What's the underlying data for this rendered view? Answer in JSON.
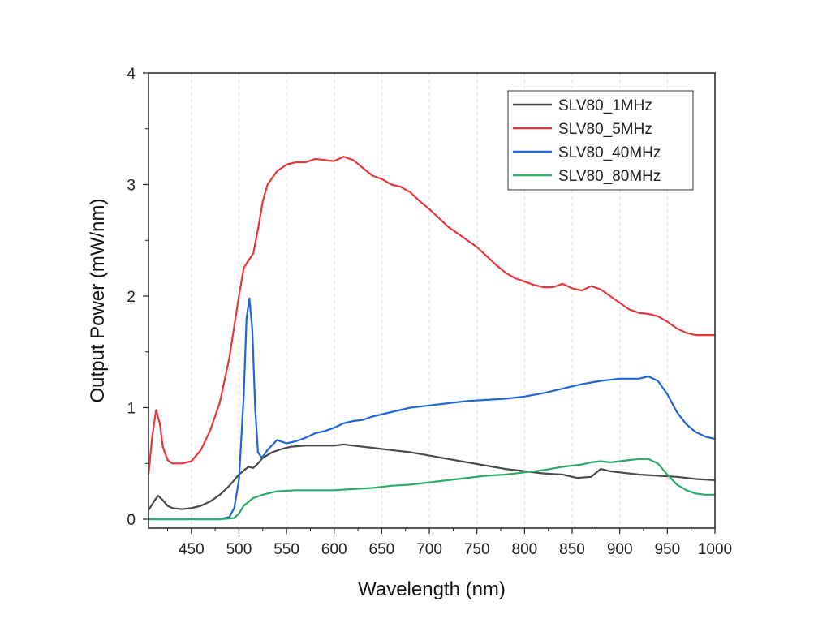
{
  "chart_data": {
    "type": "line",
    "title": "",
    "xlabel": "Wavelength (nm)",
    "ylabel": "Output Power (mW/nm)",
    "xlim": [
      405,
      1000
    ],
    "ylim": [
      -0.08,
      4
    ],
    "x_ticks": [
      450,
      500,
      550,
      600,
      650,
      700,
      750,
      800,
      850,
      900,
      950,
      1000
    ],
    "y_ticks": [
      0,
      1,
      2,
      3,
      4
    ],
    "grid": "vertical dashed, light",
    "legend": "top-right",
    "series": [
      {
        "name": "SLV80_1MHz",
        "color": "#4a4a4a",
        "points": [
          [
            405,
            0.08
          ],
          [
            410,
            0.15
          ],
          [
            415,
            0.21
          ],
          [
            420,
            0.17
          ],
          [
            425,
            0.12
          ],
          [
            430,
            0.1
          ],
          [
            440,
            0.09
          ],
          [
            450,
            0.1
          ],
          [
            460,
            0.12
          ],
          [
            470,
            0.16
          ],
          [
            480,
            0.22
          ],
          [
            490,
            0.3
          ],
          [
            500,
            0.4
          ],
          [
            510,
            0.47
          ],
          [
            515,
            0.46
          ],
          [
            520,
            0.5
          ],
          [
            525,
            0.55
          ],
          [
            535,
            0.6
          ],
          [
            545,
            0.63
          ],
          [
            555,
            0.65
          ],
          [
            570,
            0.66
          ],
          [
            590,
            0.66
          ],
          [
            600,
            0.66
          ],
          [
            610,
            0.67
          ],
          [
            620,
            0.66
          ],
          [
            640,
            0.64
          ],
          [
            660,
            0.62
          ],
          [
            680,
            0.6
          ],
          [
            700,
            0.57
          ],
          [
            720,
            0.54
          ],
          [
            740,
            0.51
          ],
          [
            760,
            0.48
          ],
          [
            780,
            0.45
          ],
          [
            800,
            0.43
          ],
          [
            820,
            0.41
          ],
          [
            840,
            0.4
          ],
          [
            855,
            0.37
          ],
          [
            870,
            0.38
          ],
          [
            880,
            0.45
          ],
          [
            890,
            0.43
          ],
          [
            900,
            0.42
          ],
          [
            920,
            0.4
          ],
          [
            940,
            0.39
          ],
          [
            960,
            0.38
          ],
          [
            980,
            0.36
          ],
          [
            1000,
            0.35
          ]
        ]
      },
      {
        "name": "SLV80_5MHz",
        "color": "#e8363a",
        "points": [
          [
            405,
            0.4
          ],
          [
            409,
            0.75
          ],
          [
            413,
            0.98
          ],
          [
            417,
            0.85
          ],
          [
            420,
            0.65
          ],
          [
            425,
            0.53
          ],
          [
            430,
            0.5
          ],
          [
            440,
            0.5
          ],
          [
            450,
            0.52
          ],
          [
            460,
            0.62
          ],
          [
            470,
            0.8
          ],
          [
            480,
            1.05
          ],
          [
            490,
            1.45
          ],
          [
            500,
            2.0
          ],
          [
            505,
            2.25
          ],
          [
            510,
            2.32
          ],
          [
            515,
            2.38
          ],
          [
            520,
            2.6
          ],
          [
            525,
            2.85
          ],
          [
            530,
            3.0
          ],
          [
            540,
            3.12
          ],
          [
            550,
            3.18
          ],
          [
            560,
            3.2
          ],
          [
            570,
            3.2
          ],
          [
            580,
            3.23
          ],
          [
            590,
            3.22
          ],
          [
            600,
            3.21
          ],
          [
            610,
            3.25
          ],
          [
            620,
            3.22
          ],
          [
            630,
            3.15
          ],
          [
            640,
            3.08
          ],
          [
            650,
            3.05
          ],
          [
            660,
            3.0
          ],
          [
            670,
            2.98
          ],
          [
            680,
            2.93
          ],
          [
            690,
            2.85
          ],
          [
            700,
            2.78
          ],
          [
            710,
            2.7
          ],
          [
            720,
            2.62
          ],
          [
            730,
            2.56
          ],
          [
            740,
            2.5
          ],
          [
            750,
            2.44
          ],
          [
            760,
            2.36
          ],
          [
            770,
            2.28
          ],
          [
            780,
            2.21
          ],
          [
            790,
            2.16
          ],
          [
            800,
            2.13
          ],
          [
            810,
            2.1
          ],
          [
            820,
            2.08
          ],
          [
            830,
            2.08
          ],
          [
            840,
            2.11
          ],
          [
            850,
            2.07
          ],
          [
            860,
            2.05
          ],
          [
            870,
            2.09
          ],
          [
            880,
            2.06
          ],
          [
            890,
            2.0
          ],
          [
            900,
            1.94
          ],
          [
            910,
            1.88
          ],
          [
            920,
            1.85
          ],
          [
            930,
            1.84
          ],
          [
            940,
            1.82
          ],
          [
            950,
            1.77
          ],
          [
            960,
            1.71
          ],
          [
            970,
            1.67
          ],
          [
            980,
            1.65
          ],
          [
            990,
            1.65
          ],
          [
            1000,
            1.65
          ]
        ]
      },
      {
        "name": "SLV80_40MHz",
        "color": "#1f66d6",
        "points": [
          [
            405,
            0.0
          ],
          [
            420,
            0.0
          ],
          [
            440,
            0.0
          ],
          [
            460,
            0.0
          ],
          [
            480,
            0.0
          ],
          [
            490,
            0.02
          ],
          [
            495,
            0.1
          ],
          [
            500,
            0.35
          ],
          [
            505,
            1.1
          ],
          [
            508,
            1.8
          ],
          [
            511,
            1.98
          ],
          [
            514,
            1.7
          ],
          [
            517,
            1.0
          ],
          [
            520,
            0.6
          ],
          [
            524,
            0.55
          ],
          [
            530,
            0.62
          ],
          [
            540,
            0.71
          ],
          [
            550,
            0.68
          ],
          [
            560,
            0.7
          ],
          [
            570,
            0.73
          ],
          [
            580,
            0.77
          ],
          [
            590,
            0.79
          ],
          [
            600,
            0.82
          ],
          [
            610,
            0.86
          ],
          [
            620,
            0.88
          ],
          [
            630,
            0.89
          ],
          [
            640,
            0.92
          ],
          [
            660,
            0.96
          ],
          [
            680,
            1.0
          ],
          [
            700,
            1.02
          ],
          [
            720,
            1.04
          ],
          [
            740,
            1.06
          ],
          [
            760,
            1.07
          ],
          [
            780,
            1.08
          ],
          [
            800,
            1.1
          ],
          [
            820,
            1.13
          ],
          [
            840,
            1.17
          ],
          [
            860,
            1.21
          ],
          [
            880,
            1.24
          ],
          [
            900,
            1.26
          ],
          [
            920,
            1.26
          ],
          [
            930,
            1.28
          ],
          [
            940,
            1.24
          ],
          [
            950,
            1.12
          ],
          [
            960,
            0.96
          ],
          [
            970,
            0.85
          ],
          [
            980,
            0.78
          ],
          [
            990,
            0.74
          ],
          [
            1000,
            0.72
          ]
        ]
      },
      {
        "name": "SLV80_80MHz",
        "color": "#2eaa6a",
        "points": [
          [
            405,
            0.0
          ],
          [
            450,
            0.0
          ],
          [
            480,
            0.0
          ],
          [
            495,
            0.01
          ],
          [
            500,
            0.05
          ],
          [
            505,
            0.12
          ],
          [
            515,
            0.19
          ],
          [
            525,
            0.22
          ],
          [
            540,
            0.25
          ],
          [
            560,
            0.26
          ],
          [
            580,
            0.26
          ],
          [
            600,
            0.26
          ],
          [
            620,
            0.27
          ],
          [
            640,
            0.28
          ],
          [
            660,
            0.3
          ],
          [
            680,
            0.31
          ],
          [
            700,
            0.33
          ],
          [
            720,
            0.35
          ],
          [
            740,
            0.37
          ],
          [
            760,
            0.39
          ],
          [
            780,
            0.4
          ],
          [
            800,
            0.42
          ],
          [
            820,
            0.44
          ],
          [
            840,
            0.47
          ],
          [
            860,
            0.49
          ],
          [
            870,
            0.51
          ],
          [
            880,
            0.52
          ],
          [
            890,
            0.51
          ],
          [
            900,
            0.52
          ],
          [
            910,
            0.53
          ],
          [
            920,
            0.54
          ],
          [
            930,
            0.54
          ],
          [
            940,
            0.5
          ],
          [
            950,
            0.4
          ],
          [
            960,
            0.31
          ],
          [
            970,
            0.26
          ],
          [
            980,
            0.23
          ],
          [
            990,
            0.22
          ],
          [
            1000,
            0.22
          ]
        ]
      }
    ]
  }
}
